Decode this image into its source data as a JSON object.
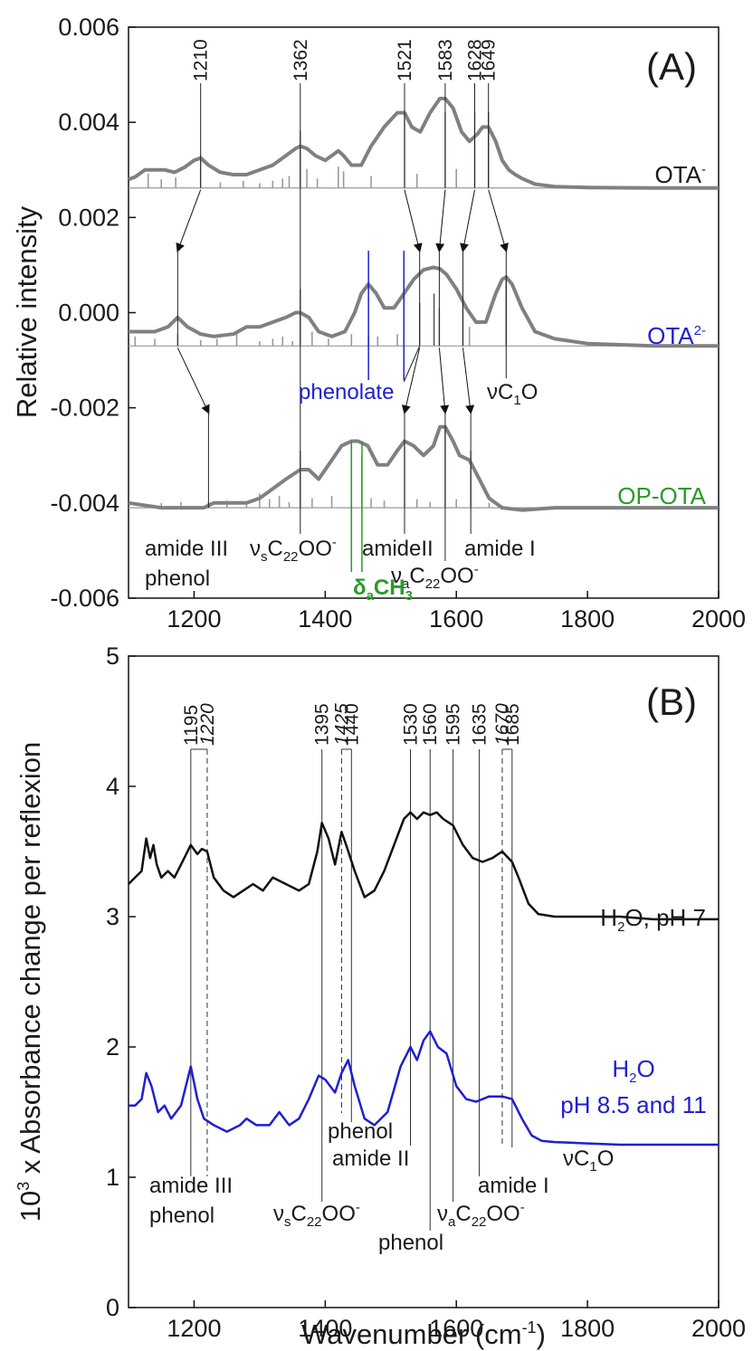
{
  "charts": [
    {
      "panel": "(A)",
      "type": "line",
      "ylabel": "Relative intensity",
      "xlim": [
        1100,
        2000
      ],
      "ylim": [
        -0.006,
        0.006
      ],
      "yticks": [
        "0.006",
        "0.004",
        "0.002",
        "0.000",
        "-0.002",
        "-0.004",
        "-0.006"
      ],
      "ytick_values": [
        0.006,
        0.004,
        0.002,
        0.0,
        -0.002,
        -0.004,
        -0.006
      ],
      "xticks": [
        "1200",
        "1400",
        "1600",
        "1800",
        "2000"
      ],
      "xtick_values": [
        1200,
        1400,
        1600,
        1800,
        2000
      ],
      "series": [
        {
          "name": "OTA-",
          "color": "#808080",
          "baseline": 0.00262,
          "x": [
            1100,
            1110,
            1125,
            1140,
            1155,
            1170,
            1185,
            1200,
            1210,
            1222,
            1240,
            1260,
            1280,
            1300,
            1320,
            1340,
            1355,
            1362,
            1372,
            1385,
            1400,
            1410,
            1420,
            1428,
            1440,
            1455,
            1470,
            1490,
            1510,
            1521,
            1532,
            1545,
            1560,
            1575,
            1583,
            1595,
            1608,
            1620,
            1632,
            1640,
            1649,
            1660,
            1670,
            1680,
            1690,
            1700,
            1720,
            1750,
            1800,
            1900,
            2000
          ],
          "y": [
            0.0028,
            0.00285,
            0.003,
            0.003,
            0.003,
            0.00295,
            0.00305,
            0.0032,
            0.00325,
            0.0031,
            0.00295,
            0.0029,
            0.0029,
            0.003,
            0.0031,
            0.0033,
            0.00345,
            0.0035,
            0.00345,
            0.0033,
            0.0032,
            0.0033,
            0.0034,
            0.0033,
            0.0031,
            0.0031,
            0.0035,
            0.0039,
            0.0042,
            0.0042,
            0.0039,
            0.0038,
            0.0042,
            0.0045,
            0.0045,
            0.0043,
            0.0038,
            0.0036,
            0.00375,
            0.0039,
            0.0039,
            0.0036,
            0.0032,
            0.003,
            0.0029,
            0.00282,
            0.0027,
            0.00265,
            0.00263,
            0.00262,
            0.00262
          ]
        },
        {
          "name": "OTA2-",
          "color": "#808080",
          "baseline": -0.0007,
          "x": [
            1100,
            1120,
            1140,
            1160,
            1175,
            1190,
            1210,
            1230,
            1260,
            1280,
            1300,
            1320,
            1340,
            1355,
            1362,
            1375,
            1390,
            1410,
            1430,
            1445,
            1455,
            1466,
            1478,
            1490,
            1505,
            1520,
            1535,
            1550,
            1565,
            1575,
            1585,
            1600,
            1615,
            1630,
            1645,
            1660,
            1670,
            1676,
            1685,
            1700,
            1720,
            1750,
            1800,
            1900,
            2000
          ],
          "y": [
            -0.0004,
            -0.0004,
            -0.0004,
            -0.0003,
            -0.0001,
            -0.0003,
            -0.00045,
            -0.0005,
            -0.00045,
            -0.0003,
            -0.0003,
            -0.0002,
            -0.0001,
            0.0,
            0.0,
            -0.0001,
            -0.0004,
            -0.0005,
            -0.0004,
            0.0,
            0.0004,
            0.0006,
            0.0004,
            0.0001,
            0.0001,
            0.0004,
            0.0007,
            0.0009,
            0.00095,
            0.00092,
            0.0008,
            0.0005,
            0.0001,
            -0.0002,
            -0.0002,
            0.0004,
            0.0007,
            0.00075,
            0.0006,
            0.0001,
            -0.0004,
            -0.00055,
            -0.00065,
            -0.0007,
            -0.0007
          ]
        },
        {
          "name": "OP-OTA",
          "color": "#808080",
          "baseline": -0.0041,
          "x": [
            1100,
            1150,
            1200,
            1215,
            1230,
            1250,
            1280,
            1300,
            1320,
            1340,
            1362,
            1375,
            1390,
            1410,
            1425,
            1440,
            1450,
            1465,
            1480,
            1495,
            1510,
            1521,
            1535,
            1550,
            1565,
            1575,
            1583,
            1595,
            1605,
            1620,
            1635,
            1650,
            1670,
            1700,
            1750,
            1800,
            1900,
            2000
          ],
          "y": [
            -0.004,
            -0.0041,
            -0.0041,
            -0.0041,
            -0.004,
            -0.004,
            -0.004,
            -0.0039,
            -0.0037,
            -0.0035,
            -0.0033,
            -0.0033,
            -0.0035,
            -0.0031,
            -0.0028,
            -0.0027,
            -0.0027,
            -0.0028,
            -0.0032,
            -0.0032,
            -0.0029,
            -0.0027,
            -0.0028,
            -0.003,
            -0.0028,
            -0.0024,
            -0.0024,
            -0.0027,
            -0.003,
            -0.0031,
            -0.0035,
            -0.0039,
            -0.0041,
            -0.00415,
            -0.0041,
            -0.0041,
            -0.0041,
            -0.0041
          ]
        }
      ],
      "stick_spectra": [
        {
          "series": "OTA-",
          "baseline": 0.00262,
          "sticks": [
            [
              1130,
              0.0003
            ],
            [
              1150,
              0.00018
            ],
            [
              1172,
              0.00022
            ],
            [
              1210,
              0.0007
            ],
            [
              1240,
              0.00012
            ],
            [
              1275,
              0.00015
            ],
            [
              1300,
              0.0001
            ],
            [
              1320,
              0.00015
            ],
            [
              1335,
              0.0002
            ],
            [
              1345,
              0.00025
            ],
            [
              1362,
              0.0012
            ],
            [
              1372,
              0.0004
            ],
            [
              1388,
              0.0002
            ],
            [
              1420,
              0.00045
            ],
            [
              1428,
              0.00035
            ],
            [
              1470,
              0.00025
            ],
            [
              1521,
              0.0016
            ],
            [
              1540,
              0.0003
            ],
            [
              1583,
              0.0016
            ],
            [
              1600,
              0.0004
            ],
            [
              1628,
              0.0016
            ],
            [
              1649,
              0.0016
            ]
          ]
        },
        {
          "series": "OTA2-",
          "baseline": -0.0007,
          "sticks": [
            [
              1110,
              0.0002
            ],
            [
              1140,
              0.00015
            ],
            [
              1175,
              0.00025
            ],
            [
              1210,
              0.00012
            ],
            [
              1235,
              0.00015
            ],
            [
              1265,
              0.00025
            ],
            [
              1300,
              0.0001
            ],
            [
              1320,
              0.00015
            ],
            [
              1335,
              0.0002
            ],
            [
              1350,
              0.0001
            ],
            [
              1362,
              0.0012
            ],
            [
              1380,
              0.0003
            ],
            [
              1405,
              0.00015
            ],
            [
              1440,
              0.00025
            ],
            [
              1466,
              0.0002
            ],
            [
              1480,
              0.0002
            ],
            [
              1510,
              0.00025
            ],
            [
              1544,
              0.0009
            ],
            [
              1566,
              0.0011
            ],
            [
              1574,
              0.0008
            ],
            [
              1610,
              0.0009
            ],
            [
              1620,
              0.0004
            ],
            [
              1676,
              0.0014
            ]
          ]
        },
        {
          "series": "OP-OTA",
          "baseline": -0.0041,
          "sticks": [
            [
              1150,
              0.0001
            ],
            [
              1180,
              0.00012
            ],
            [
              1222,
              0.00012
            ],
            [
              1250,
              0.00015
            ],
            [
              1280,
              0.00012
            ],
            [
              1300,
              0.0003
            ],
            [
              1315,
              0.00018
            ],
            [
              1330,
              0.00025
            ],
            [
              1345,
              0.00012
            ],
            [
              1362,
              0.0012
            ],
            [
              1380,
              0.0002
            ],
            [
              1410,
              0.00025
            ],
            [
              1440,
              0.0013
            ],
            [
              1456,
              0.0011
            ],
            [
              1470,
              0.0002
            ],
            [
              1490,
              0.00015
            ],
            [
              1521,
              0.0013
            ],
            [
              1540,
              0.00018
            ],
            [
              1560,
              0.00012
            ],
            [
              1583,
              0.0017
            ],
            [
              1600,
              0.00018
            ],
            [
              1622,
              0.0012
            ],
            [
              1650,
              0.0001
            ]
          ]
        }
      ],
      "peak_labels": [
        "1210",
        "1362",
        "1521",
        "1583",
        "1628",
        "1649"
      ],
      "peak_values": [
        1210,
        1362,
        1521,
        1583,
        1628,
        1649
      ],
      "series_labels": {
        "ota_main": "OTA",
        "ota_sup": "-",
        "ota2_main": "OTA",
        "ota2_sup": "2-",
        "opota": "OP-OTA"
      },
      "annotations": {
        "phenolate": "phenolate",
        "nuc1o_nu": "ν",
        "nuc1o_c": "C",
        "nuc1o_sub": "1",
        "nuc1o_o": "O",
        "amide3": "amide III",
        "phenol": "phenol",
        "nus_nu": "ν",
        "nus_sub": "s",
        "nus_c": "C",
        "nus_sub2": "22",
        "nus_oo": "OO",
        "nus_sup": "-",
        "amide2": "amideII",
        "amide1": "amide I",
        "nua_nu": "ν",
        "nua_sub": "a",
        "nua_c": "C",
        "nua_sub2": "22",
        "nua_oo": "OO",
        "nua_sup": "-",
        "delta_d": "δ",
        "delta_sub": "a",
        "delta_ch": "CH",
        "delta_sub2": "3"
      },
      "colors": {
        "ota2": "#1f1fd0",
        "opota": "#2a9a2a",
        "curve": "#808080",
        "phenolate": "#1f1fd0",
        "delta": "#2a9a2a"
      }
    },
    {
      "panel": "(B)",
      "type": "line",
      "ylabel_main": "10",
      "ylabel_sup": "3",
      "ylabel_rest": " x Absorbance change per reflexion",
      "xlabel_main": "Wavenumber (cm",
      "xlabel_sup": "-1",
      "xlabel_close": ")",
      "xlim": [
        1100,
        2000
      ],
      "ylim": [
        0,
        5
      ],
      "yticks": [
        "0",
        "1",
        "2",
        "3",
        "4",
        "5"
      ],
      "ytick_values": [
        0,
        1,
        2,
        3,
        4,
        5
      ],
      "xticks": [
        "1200",
        "1400",
        "1600",
        "1800",
        "2000"
      ],
      "xtick_values": [
        1200,
        1400,
        1600,
        1800,
        2000
      ],
      "series": [
        {
          "name": "H2O, pH 7",
          "color": "#111111",
          "x": [
            1100,
            1110,
            1120,
            1127,
            1133,
            1138,
            1143,
            1150,
            1160,
            1170,
            1180,
            1195,
            1205,
            1212,
            1220,
            1230,
            1245,
            1260,
            1275,
            1290,
            1305,
            1320,
            1340,
            1360,
            1375,
            1388,
            1395,
            1405,
            1415,
            1425,
            1432,
            1445,
            1460,
            1475,
            1490,
            1505,
            1520,
            1530,
            1540,
            1550,
            1560,
            1570,
            1580,
            1595,
            1610,
            1625,
            1640,
            1655,
            1670,
            1685,
            1695,
            1710,
            1725,
            1750,
            1800,
            1850,
            1900,
            1950,
            2000
          ],
          "y": [
            3.25,
            3.3,
            3.35,
            3.6,
            3.45,
            3.55,
            3.4,
            3.3,
            3.35,
            3.3,
            3.4,
            3.55,
            3.48,
            3.52,
            3.5,
            3.3,
            3.2,
            3.15,
            3.2,
            3.25,
            3.2,
            3.3,
            3.25,
            3.2,
            3.25,
            3.5,
            3.72,
            3.6,
            3.4,
            3.65,
            3.55,
            3.35,
            3.15,
            3.2,
            3.35,
            3.55,
            3.75,
            3.8,
            3.75,
            3.8,
            3.78,
            3.8,
            3.75,
            3.7,
            3.55,
            3.45,
            3.42,
            3.45,
            3.5,
            3.42,
            3.3,
            3.1,
            3.02,
            3.0,
            3.0,
            3.0,
            2.98,
            2.98,
            2.98
          ]
        },
        {
          "name": "H2O pH 8.5 and 11",
          "color": "#1f1fd0",
          "x": [
            1100,
            1110,
            1120,
            1127,
            1135,
            1145,
            1155,
            1165,
            1180,
            1195,
            1205,
            1215,
            1230,
            1250,
            1270,
            1280,
            1295,
            1315,
            1330,
            1345,
            1360,
            1375,
            1390,
            1400,
            1415,
            1425,
            1435,
            1445,
            1460,
            1475,
            1495,
            1515,
            1530,
            1540,
            1550,
            1560,
            1572,
            1585,
            1600,
            1615,
            1630,
            1650,
            1670,
            1685,
            1700,
            1715,
            1730,
            1750,
            1800,
            1850,
            1900,
            1950,
            2000
          ],
          "y": [
            1.55,
            1.55,
            1.6,
            1.8,
            1.7,
            1.5,
            1.55,
            1.45,
            1.55,
            1.85,
            1.6,
            1.45,
            1.4,
            1.35,
            1.4,
            1.45,
            1.4,
            1.4,
            1.5,
            1.4,
            1.45,
            1.6,
            1.78,
            1.75,
            1.65,
            1.8,
            1.9,
            1.7,
            1.45,
            1.4,
            1.5,
            1.85,
            2.0,
            1.9,
            2.05,
            2.12,
            2.0,
            1.95,
            1.7,
            1.6,
            1.58,
            1.62,
            1.62,
            1.6,
            1.45,
            1.32,
            1.28,
            1.27,
            1.26,
            1.25,
            1.25,
            1.25,
            1.25
          ]
        }
      ],
      "peak_labels": [
        {
          "text": "1195",
          "value": 1195,
          "italic": false
        },
        {
          "text": "1220",
          "value": 1220,
          "italic": true
        },
        {
          "text": "1395",
          "value": 1395,
          "italic": false
        },
        {
          "text": "1425",
          "value": 1425,
          "italic": true
        },
        {
          "text": "1440",
          "value": 1440,
          "italic": false
        },
        {
          "text": "1530",
          "value": 1530,
          "italic": false
        },
        {
          "text": "1560",
          "value": 1560,
          "italic": false
        },
        {
          "text": "1595",
          "value": 1595,
          "italic": false
        },
        {
          "text": "1635",
          "value": 1635,
          "italic": false
        },
        {
          "text": "1670",
          "value": 1670,
          "italic": true
        },
        {
          "text": "1685",
          "value": 1685,
          "italic": false
        }
      ],
      "series_labels": {
        "ph7_h": "H",
        "ph7_sub": "2",
        "ph7_rest": "O, pH 7",
        "ph11_h": "H",
        "ph11_sub": "2",
        "ph11_o": "O",
        "ph11_line2": "pH 8.5 and 11"
      },
      "annotations": {
        "amide3": "amide III",
        "phenol": "phenol",
        "nus_nu": "ν",
        "nus_sub": "s",
        "nus_c": "C",
        "nus_sub2": "22",
        "nus_oo": "OO",
        "nus_sup": "-",
        "phenol_mid": "phenol",
        "amide2": "amide II",
        "phenol_low": "phenol",
        "nua_nu": "ν",
        "nua_sub": "a",
        "nua_c": "C",
        "nua_sub2": "22",
        "nua_oo": "OO",
        "nua_sup": "-",
        "amide1": "amide I",
        "nuc1o_nu": "ν",
        "nuc1o_c": "C",
        "nuc1o_sub": "1",
        "nuc1o_o": "O"
      },
      "colors": {
        "ph7": "#111111",
        "ph11": "#1f1fd0"
      }
    }
  ]
}
